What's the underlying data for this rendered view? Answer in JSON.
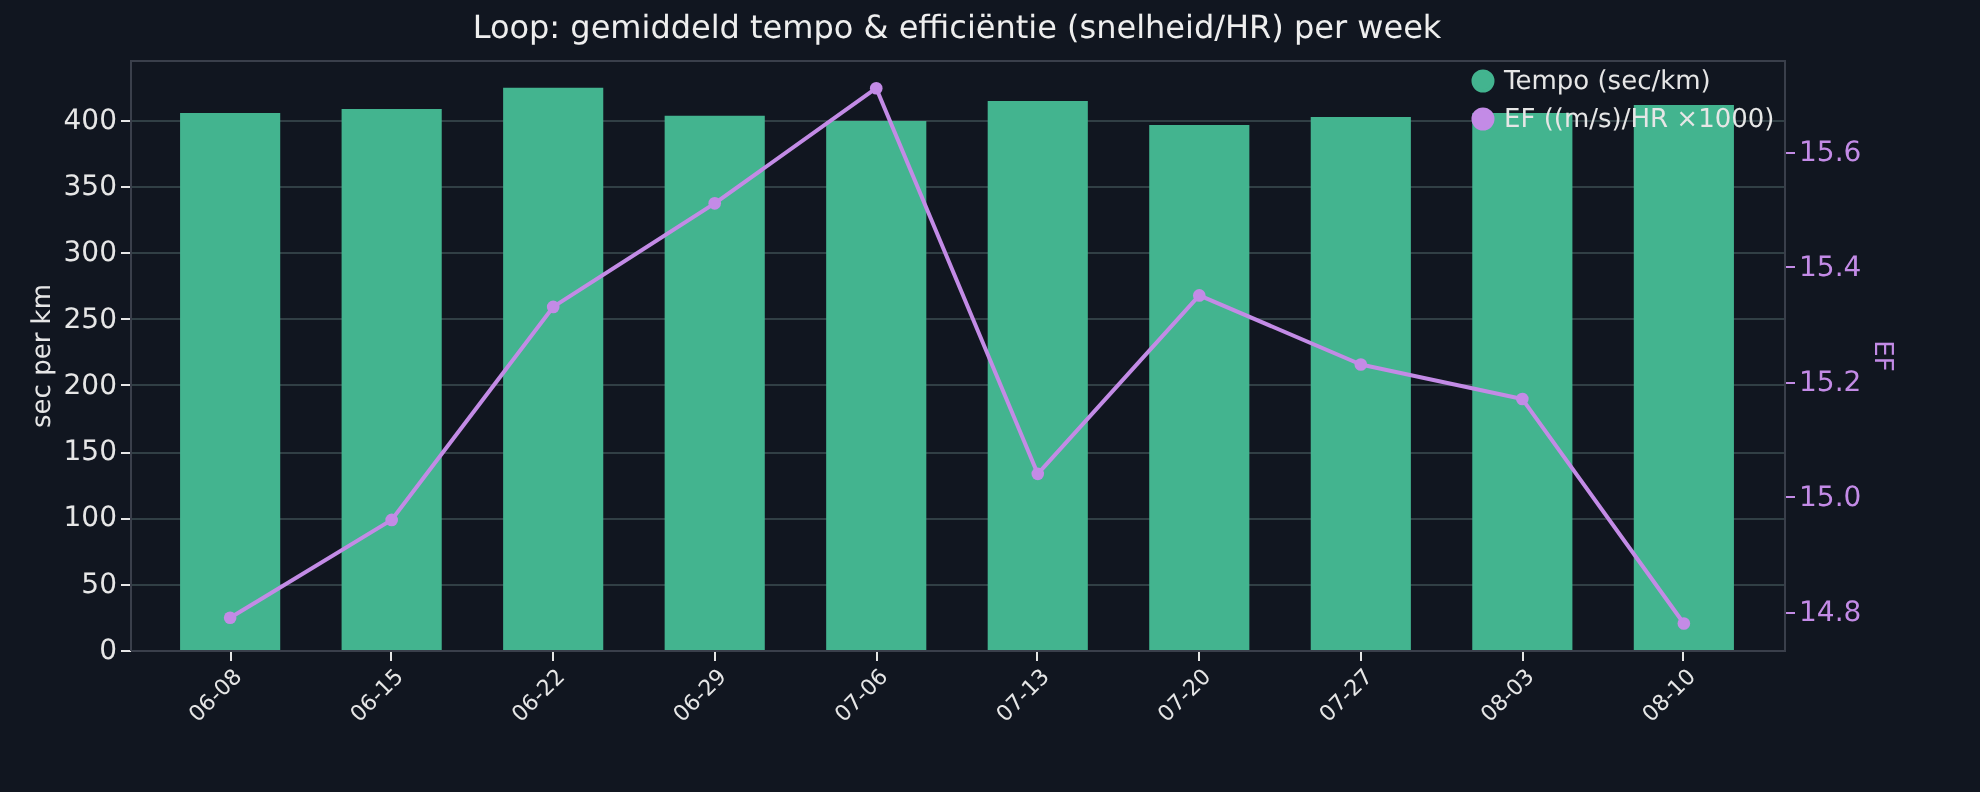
{
  "chart_data": {
    "type": "bar",
    "title": "Loop: gemiddeld tempo & efficiëntie (snelheid/HR) per week",
    "categories": [
      "06-08",
      "06-15",
      "06-22",
      "06-29",
      "07-06",
      "07-13",
      "07-20",
      "07-27",
      "08-03",
      "08-10"
    ],
    "series": [
      {
        "name": "Tempo (sec/km)",
        "color": "#43b48f",
        "values": [
          405,
          408,
          424,
          403,
          399,
          414,
          396,
          402,
          405,
          411
        ]
      },
      {
        "name": "EF ((m/s)/HR ×1000)",
        "type": "line",
        "axis": "y2",
        "color": "#c38be6",
        "values": [
          14.79,
          14.96,
          15.33,
          15.51,
          15.71,
          15.04,
          15.35,
          15.23,
          15.17,
          14.78
        ]
      }
    ],
    "ylabel": "sec per km",
    "y2label": "EF",
    "ylim": [
      0,
      445
    ],
    "yticks": [
      0,
      50,
      100,
      150,
      200,
      250,
      300,
      350,
      400
    ],
    "y2lim": [
      14.734,
      15.759
    ],
    "y2ticks": [
      {
        "value": 14.8,
        "label": "14.8"
      },
      {
        "value": 15,
        "label": "15.0"
      },
      {
        "value": 15.2,
        "label": "15.2"
      },
      {
        "value": 15.4,
        "label": "15.4"
      },
      {
        "value": 15.6,
        "label": "15.6"
      }
    ],
    "grid": "y",
    "legend": "top right",
    "marker": "circle",
    "line_style": "solid"
  }
}
